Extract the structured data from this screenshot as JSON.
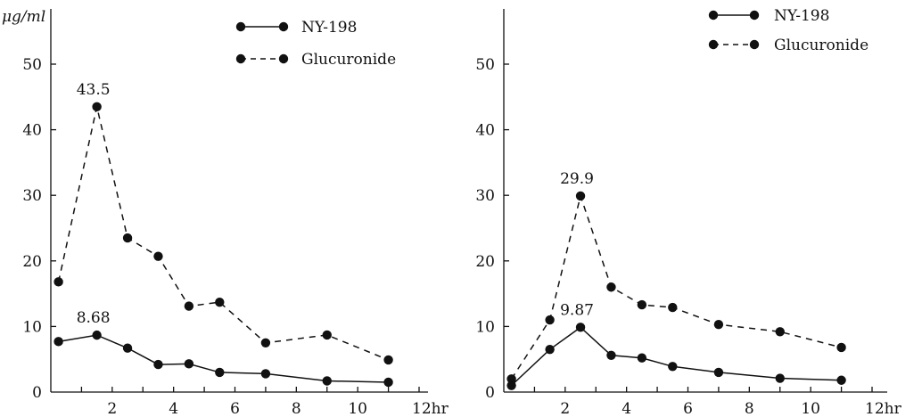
{
  "chart_data": [
    {
      "type": "line",
      "ylabel": "μg/ml",
      "x_unit": "12hr",
      "xlim": [
        0,
        12
      ],
      "ylim": [
        0,
        55
      ],
      "xticks": [
        "2",
        "4",
        "6",
        "8",
        "10"
      ],
      "yticks": [
        "0",
        "10",
        "20",
        "30",
        "40",
        "50"
      ],
      "legend": "top-right",
      "series": [
        {
          "name": "NY-198",
          "style": "solid",
          "x": [
            0.25,
            1.5,
            2.5,
            3.5,
            4.5,
            5.5,
            7,
            9,
            11
          ],
          "y": [
            7.7,
            8.68,
            6.7,
            4.2,
            4.3,
            3.0,
            2.8,
            1.7,
            1.5
          ],
          "peak_label": "8.68",
          "peak_index": 1
        },
        {
          "name": "Glucuronide",
          "style": "dashed",
          "x": [
            0.25,
            1.5,
            2.5,
            3.5,
            4.5,
            5.5,
            7,
            9,
            11
          ],
          "y": [
            16.8,
            43.5,
            23.5,
            20.7,
            13.1,
            13.7,
            7.5,
            8.7,
            4.9
          ],
          "peak_label": "43.5",
          "peak_index": 1
        }
      ]
    },
    {
      "type": "line",
      "ylabel": "",
      "x_unit": "12hr",
      "xlim": [
        0,
        12
      ],
      "ylim": [
        0,
        55
      ],
      "xticks": [
        "2",
        "4",
        "6",
        "8",
        "10"
      ],
      "yticks": [
        "0",
        "10",
        "20",
        "30",
        "40",
        "50"
      ],
      "legend": "top-right",
      "series": [
        {
          "name": "NY-198",
          "style": "solid",
          "x": [
            0.25,
            1.5,
            2.5,
            3.5,
            4.5,
            5.5,
            7,
            9,
            11
          ],
          "y": [
            1.0,
            6.5,
            9.87,
            5.6,
            5.2,
            3.9,
            3.0,
            2.1,
            1.8
          ],
          "peak_label": "9.87",
          "peak_index": 2
        },
        {
          "name": "Glucuronide",
          "style": "dashed",
          "x": [
            0.25,
            1.5,
            2.5,
            3.5,
            4.5,
            5.5,
            7,
            9,
            11
          ],
          "y": [
            2.0,
            11.0,
            29.9,
            16.0,
            13.3,
            12.9,
            10.3,
            9.2,
            6.8
          ],
          "peak_label": "29.9",
          "peak_index": 2
        }
      ]
    }
  ]
}
